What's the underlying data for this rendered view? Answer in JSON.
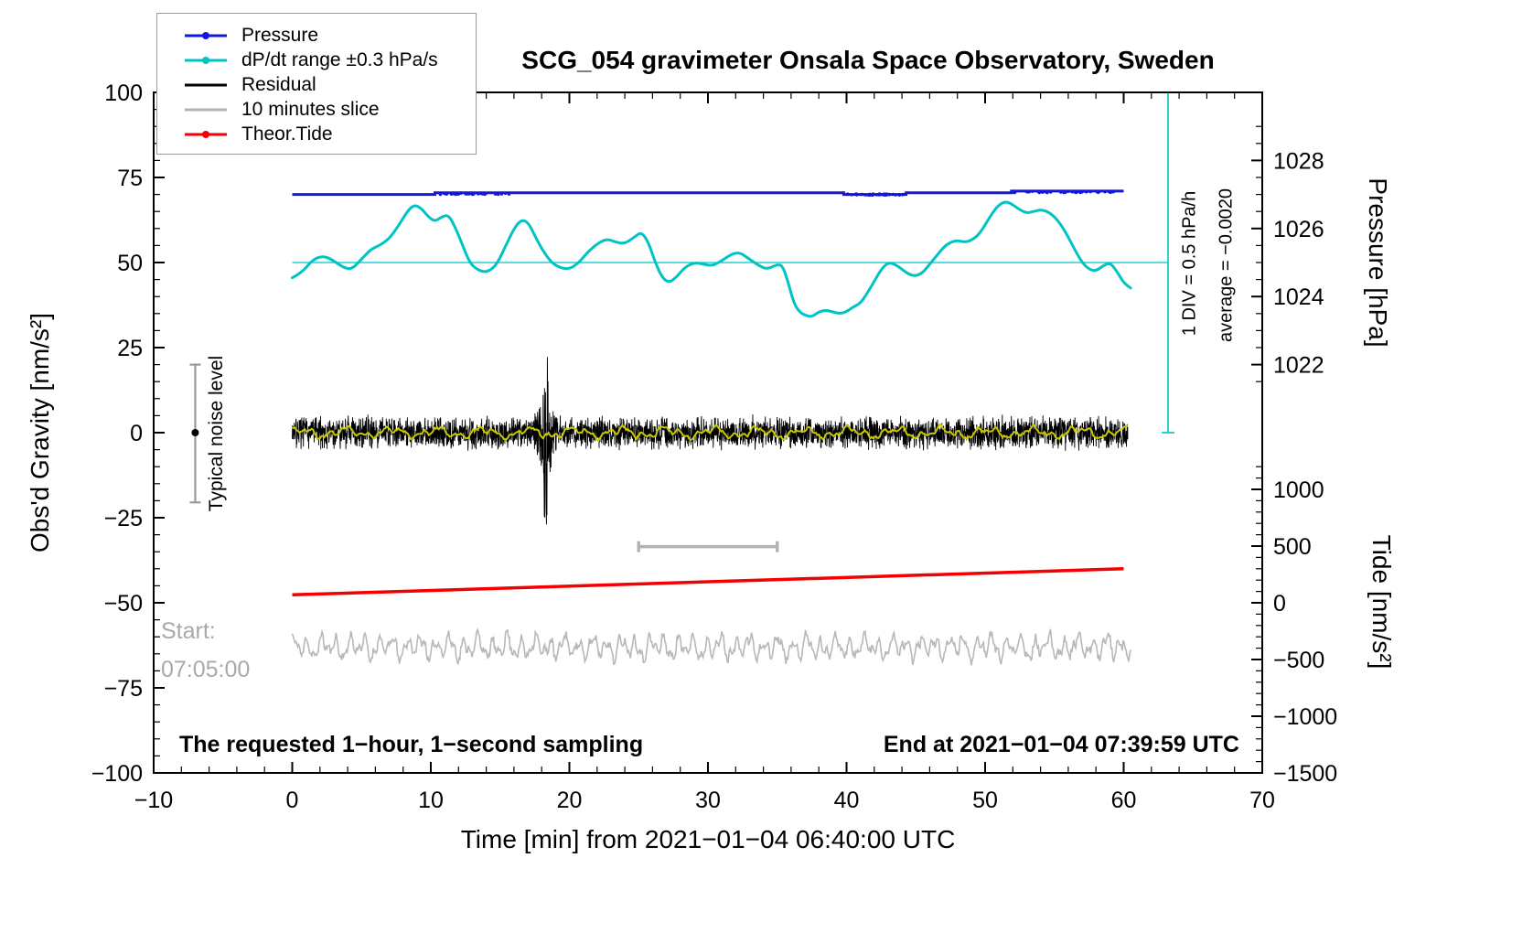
{
  "chart_data": {
    "type": "line",
    "title": "SCG_054 gravimeter Onsala Space Observatory, Sweden",
    "xlabel": "Time [min] from 2021−01−04 06:40:00 UTC",
    "ylabel": "Obs'd Gravity [nm/s²]",
    "ylabel_pressure": "Pressure [hPa]",
    "ylabel_tide": "Tide [nm/s²]",
    "xlim": [
      -10,
      70
    ],
    "ylim": [
      -100,
      100
    ],
    "grid": false,
    "legend_position": "top-left",
    "x_axis": {
      "values": [
        -10,
        0,
        10,
        20,
        30,
        40,
        50,
        60,
        70
      ],
      "labels": [
        "−10",
        "0",
        "10",
        "20",
        "30",
        "40",
        "50",
        "60",
        "70"
      ],
      "minor_step": 2
    },
    "y_axis": {
      "values": [
        -100,
        -75,
        -50,
        -25,
        0,
        25,
        50,
        75,
        100
      ],
      "labels": [
        "−100",
        "−75",
        "−50",
        "−25",
        "0",
        "25",
        "50",
        "75",
        "100"
      ],
      "minor_step": 5
    },
    "pressure_axis": {
      "p_ref": 1022,
      "g_ref": 20,
      "g_per_unit": 10,
      "values": [
        1028,
        1026,
        1024,
        1022
      ],
      "labels": [
        "1028",
        "1026",
        "1024",
        "1022"
      ],
      "minor_step": 0.5
    },
    "tide_axis": {
      "g_ref": -50,
      "g_per_unit": 0.0333333,
      "values": [
        1000,
        500,
        0,
        -500,
        -1000,
        -1500
      ],
      "labels": [
        "1000",
        "500",
        "0",
        "−500",
        "−1000",
        "−1500"
      ],
      "minor_step": 100
    },
    "annotations": {
      "noise_label": "Typical noise level",
      "div_label": "1 DIV = 0.5 hPa/h",
      "avg_label": "average = −0.0020",
      "start_label": "Start:",
      "start_time": "07:05:00",
      "footer_left": "The requested 1−hour, 1−second sampling",
      "footer_right": "End at 2021−01−04 07:39:59 UTC"
    },
    "noise_bar": {
      "x": -7,
      "g_min": -20.5,
      "g_max": 20,
      "dot_g": 0,
      "color": "#999999"
    },
    "slice_bar": {
      "g": -33.5,
      "x_min": 25,
      "x_max": 35,
      "color": "#b3b3b3"
    },
    "series": {
      "pressure": {
        "name": "Pressure",
        "color": "#1515e0",
        "unit": "hPa",
        "points": [
          [
            0,
            1027.0
          ],
          [
            10.3,
            1027.0
          ],
          [
            10.3,
            1027.05
          ],
          [
            39.8,
            1027.05
          ],
          [
            39.8,
            1027.0
          ],
          [
            44.3,
            1027.0
          ],
          [
            44.3,
            1027.05
          ],
          [
            51.9,
            1027.05
          ],
          [
            51.9,
            1027.1
          ],
          [
            60,
            1027.1
          ]
        ],
        "dot_regions": [
          {
            "x0": 10.5,
            "x1": 15.8,
            "p": 1027.02
          },
          {
            "x0": 39.9,
            "x1": 44.2,
            "p": 1027.0
          },
          {
            "x0": 52.0,
            "x1": 60.0,
            "p": 1027.07
          }
        ]
      },
      "dpdt": {
        "name": "dP/dt range ±0.3 hPa/s",
        "color": "#00c3c3",
        "ref_g": 50,
        "div_bar": {
          "x": 63.2,
          "g0": 0,
          "g1": 100
        },
        "points": [
          [
            0,
            45.5
          ],
          [
            0.7,
            47
          ],
          [
            1.5,
            51
          ],
          [
            2.3,
            52
          ],
          [
            3,
            50.5
          ],
          [
            3.7,
            48.5
          ],
          [
            4.3,
            48
          ],
          [
            5,
            51
          ],
          [
            5.7,
            54
          ],
          [
            6.3,
            55
          ],
          [
            7,
            57
          ],
          [
            7.7,
            61
          ],
          [
            8.3,
            65
          ],
          [
            8.8,
            67
          ],
          [
            9.3,
            66
          ],
          [
            9.8,
            63.5
          ],
          [
            10.3,
            62
          ],
          [
            10.8,
            63.5
          ],
          [
            11.3,
            64
          ],
          [
            11.8,
            60
          ],
          [
            12.3,
            55
          ],
          [
            12.8,
            50
          ],
          [
            13.3,
            48
          ],
          [
            14,
            47
          ],
          [
            14.7,
            49
          ],
          [
            15.3,
            54
          ],
          [
            16,
            60
          ],
          [
            16.5,
            62.5
          ],
          [
            17,
            62
          ],
          [
            17.5,
            58
          ],
          [
            18,
            54
          ],
          [
            18.7,
            50
          ],
          [
            19.3,
            48.5
          ],
          [
            20,
            48
          ],
          [
            20.7,
            50
          ],
          [
            21.3,
            53
          ],
          [
            22,
            55.5
          ],
          [
            22.7,
            57
          ],
          [
            23.3,
            56
          ],
          [
            24,
            55.5
          ],
          [
            24.7,
            57.5
          ],
          [
            25.2,
            59
          ],
          [
            25.7,
            56
          ],
          [
            26.2,
            50
          ],
          [
            26.7,
            45.5
          ],
          [
            27.2,
            44
          ],
          [
            27.8,
            46
          ],
          [
            28.3,
            48.5
          ],
          [
            29,
            50
          ],
          [
            29.7,
            49.5
          ],
          [
            30.3,
            49
          ],
          [
            31,
            50.5
          ],
          [
            31.7,
            52.5
          ],
          [
            32.3,
            53
          ],
          [
            33,
            51
          ],
          [
            33.7,
            49
          ],
          [
            34.3,
            48
          ],
          [
            35,
            49.5
          ],
          [
            35.4,
            49
          ],
          [
            35.8,
            44
          ],
          [
            36.2,
            38
          ],
          [
            36.6,
            35.5
          ],
          [
            37,
            34.5
          ],
          [
            37.5,
            34
          ],
          [
            38,
            35.5
          ],
          [
            38.5,
            36
          ],
          [
            39,
            35.5
          ],
          [
            39.5,
            35
          ],
          [
            40,
            35.5
          ],
          [
            40.5,
            37
          ],
          [
            41,
            38
          ],
          [
            41.5,
            41
          ],
          [
            42,
            44.5
          ],
          [
            42.5,
            48
          ],
          [
            43,
            50
          ],
          [
            43.5,
            49.5
          ],
          [
            44,
            48
          ],
          [
            44.5,
            46.5
          ],
          [
            45,
            46
          ],
          [
            45.5,
            47
          ],
          [
            46,
            49.5
          ],
          [
            46.5,
            52
          ],
          [
            47,
            54.5
          ],
          [
            47.5,
            56
          ],
          [
            48,
            56.5
          ],
          [
            48.5,
            56
          ],
          [
            49,
            56.5
          ],
          [
            49.5,
            58
          ],
          [
            50,
            61
          ],
          [
            50.5,
            64.5
          ],
          [
            51,
            67
          ],
          [
            51.5,
            68
          ],
          [
            52,
            67
          ],
          [
            52.5,
            65.5
          ],
          [
            53,
            64.5
          ],
          [
            53.5,
            65
          ],
          [
            54,
            65.5
          ],
          [
            54.5,
            65
          ],
          [
            55,
            63.5
          ],
          [
            55.5,
            61
          ],
          [
            56,
            57.5
          ],
          [
            56.5,
            53.5
          ],
          [
            57,
            50
          ],
          [
            57.5,
            48
          ],
          [
            58,
            47.5
          ],
          [
            58.5,
            49
          ],
          [
            59,
            50
          ],
          [
            59.5,
            47.5
          ],
          [
            60,
            44
          ],
          [
            60.5,
            42.5
          ]
        ]
      },
      "residual": {
        "name": "Residual",
        "color": "#000000",
        "baseline": 0,
        "noise_amp": 5.5,
        "n": 3600,
        "x_end": 60.3,
        "spike": {
          "x": 18.3,
          "max": 33,
          "min": -27
        }
      },
      "smooth": {
        "name": "residual-smooth",
        "color": "#c8c800",
        "baseline": 0,
        "amp": 2,
        "x_end": 60.3
      },
      "slice": {
        "name": "10 minutes slice",
        "color": "#b8b8b8",
        "baseline": -63,
        "amp": 5,
        "x_end": 60.5
      },
      "tide": {
        "name": "Theor.Tide",
        "color": "#f40000",
        "unit": "nm/s2 (tide axis)",
        "points": [
          [
            0,
            70
          ],
          [
            60,
            300
          ]
        ]
      }
    }
  },
  "legend": {
    "items": [
      {
        "label": "Pressure",
        "color": "#1515e0",
        "marker": "dot-line"
      },
      {
        "label": "dP/dt range ±0.3 hPa/s",
        "color": "#00c3c3",
        "marker": "dot-line"
      },
      {
        "label": "Residual",
        "color": "#000000",
        "marker": "line"
      },
      {
        "label": "10 minutes slice",
        "color": "#b3b3b3",
        "marker": "line"
      },
      {
        "label": "Theor.Tide",
        "color": "#f40000",
        "marker": "dot-line"
      }
    ]
  }
}
